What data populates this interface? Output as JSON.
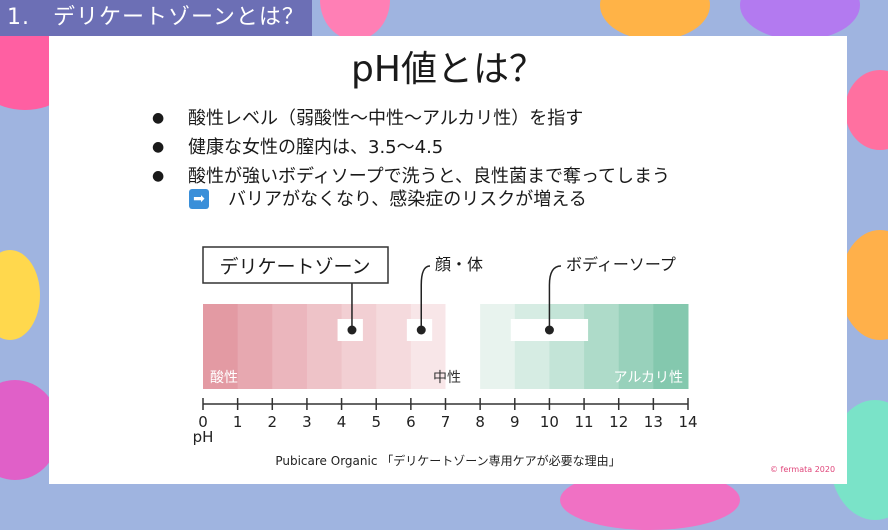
{
  "section_header": "1.　デリケートゾーンとは？",
  "title": "pH値とは？",
  "bullets": [
    "酸性レベル（弱酸性〜中性〜アルカリ性）を指す",
    "健康な女性の膣内は、3.5〜4.5",
    "酸性が強いボディソープで洗うと、良性菌まで奪ってしまう"
  ],
  "arrow_line": "バリアがなくなり、感染症のリスクが増える",
  "arrow_icon": "right-arrow-icon",
  "chart_data": {
    "type": "bar",
    "scale": "pH",
    "axis_label": "pH",
    "ticks": [
      "0",
      "1",
      "2",
      "3",
      "4",
      "5",
      "6",
      "7",
      "8",
      "9",
      "10",
      "11",
      "12",
      "13",
      "14"
    ],
    "zone_labels": [
      "酸性",
      "中性",
      "アルカリ性"
    ],
    "markers": [
      {
        "label": "デリケートゾーン",
        "value": 4.3,
        "range": [
          4.0,
          4.5
        ],
        "boxed": true
      },
      {
        "label": "顔・体",
        "value": 6.3,
        "range": [
          6.0,
          6.5
        ],
        "boxed": false
      },
      {
        "label": "ボディーソープ",
        "value": 10.0,
        "range": [
          9.0,
          11.0
        ],
        "boxed": false
      }
    ],
    "segment_colors": [
      "#e39aa3",
      "#e7a8b0",
      "#ebb6bd",
      "#eec3c8",
      "#f2cfd3",
      "#f5dadd",
      "#f8e6e8",
      "#ffffff",
      "#e8f3ee",
      "#d6ece3",
      "#c3e4d7",
      "#aedbc9",
      "#98d1bb",
      "#84c8ae"
    ]
  },
  "caption": "Pubicare Organic 「デリケートゾーン専用ケアが必要な理由」",
  "copyright": "© fermata 2020"
}
